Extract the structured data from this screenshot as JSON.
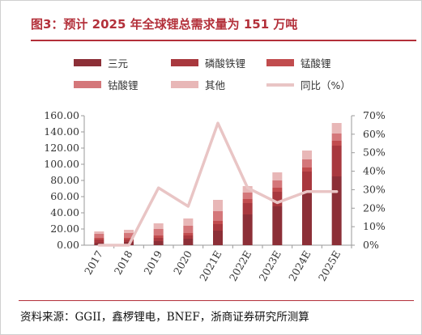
{
  "title": "图3：预计 2025 年全球锂总需求量为 151 万吨",
  "source": "资料来源：GGII，鑫椤锂电，BNEF，浙商证券研究所测算",
  "chart_data": {
    "type": "bar",
    "stacked": true,
    "categories": [
      "2017",
      "2018",
      "2019",
      "2020",
      "2021E",
      "2022E",
      "2023E",
      "2024E",
      "2025E"
    ],
    "series": [
      {
        "name": "三元",
        "type": "bar",
        "axis": "left",
        "color": "#8c2f37",
        "values": [
          3,
          4,
          5,
          8,
          18,
          38,
          48,
          67,
          85
        ]
      },
      {
        "name": "磷酸铁锂",
        "type": "bar",
        "axis": "left",
        "color": "#a8383e",
        "values": [
          4,
          3,
          4,
          4,
          8,
          14,
          18,
          24,
          38
        ]
      },
      {
        "name": "锰酸锂",
        "type": "bar",
        "axis": "left",
        "color": "#c14c4e",
        "values": [
          2,
          2,
          3,
          3,
          4,
          5,
          5,
          5,
          6
        ]
      },
      {
        "name": "钴酸锂",
        "type": "bar",
        "axis": "left",
        "color": "#d4777a",
        "values": [
          5,
          6,
          8,
          9,
          12,
          8,
          9,
          10,
          9
        ]
      },
      {
        "name": "其他",
        "type": "bar",
        "axis": "left",
        "color": "#e8b7b7",
        "values": [
          3,
          4,
          7,
          9,
          14,
          8,
          10,
          11,
          13
        ]
      },
      {
        "name": "同比（%）",
        "type": "line",
        "axis": "right",
        "color": "#e9c5c5",
        "values": [
          0,
          0,
          31,
          21,
          66,
          31,
          23,
          29,
          29
        ]
      }
    ],
    "y_left": {
      "min": 0,
      "max": 160,
      "step": 20,
      "tick_labels": [
        "0.00",
        "20.00",
        "40.00",
        "60.00",
        "80.00",
        "100.00",
        "120.00",
        "140.00",
        "160.00"
      ]
    },
    "y_right": {
      "min": 0,
      "max": 70,
      "step": 10,
      "tick_labels": [
        "0%",
        "10%",
        "20%",
        "30%",
        "40%",
        "50%",
        "60%",
        "70%"
      ]
    },
    "grid": false,
    "legend": "top"
  }
}
